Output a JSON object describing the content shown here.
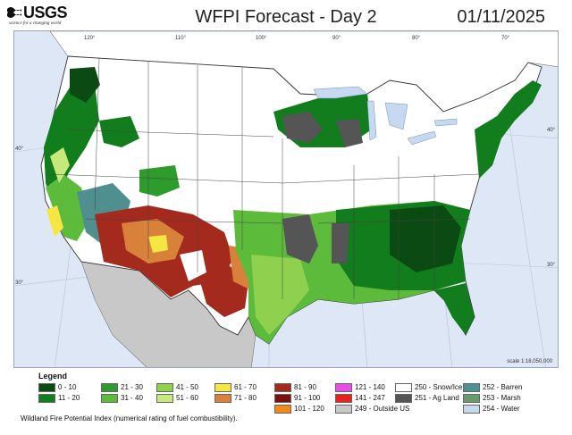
{
  "header": {
    "agency": "USGS",
    "tagline": "science for a changing world",
    "title": "WFPI Forecast - Day 2",
    "date": "01/11/2025"
  },
  "map": {
    "longitude_labels": [
      "120°",
      "110°",
      "100°",
      "90°",
      "80°",
      "70°"
    ],
    "latitude_labels_left": [
      "40°",
      "30°"
    ],
    "latitude_labels_right": [
      "40°",
      "30°"
    ],
    "scale": "scale 1:18,050,000",
    "colors": {
      "ocean": "#dde7f6",
      "outside_us": "#c8c8c8",
      "snow_ice": "#ffffff",
      "ag_land": "#555555",
      "barren": "#4f8f8f",
      "water": "#c6d9f1"
    }
  },
  "legend": {
    "title": "Legend",
    "items": [
      {
        "label": "0 - 10",
        "color": "#0b4a12"
      },
      {
        "label": "11 - 20",
        "color": "#127d1c"
      },
      {
        "label": "21 - 30",
        "color": "#2e9c2c"
      },
      {
        "label": "31 - 40",
        "color": "#5dbb3b"
      },
      {
        "label": "41 - 50",
        "color": "#8fd14f"
      },
      {
        "label": "51 - 60",
        "color": "#c7e87b"
      },
      {
        "label": "61 - 70",
        "color": "#f5e642"
      },
      {
        "label": "71 - 80",
        "color": "#d8813a"
      },
      {
        "label": "81 - 90",
        "color": "#a52a1e"
      },
      {
        "label": "91 - 100",
        "color": "#7a1010"
      },
      {
        "label": "101 - 120",
        "color": "#f08a1e"
      },
      {
        "label": "121 - 140",
        "color": "#e64ee6"
      },
      {
        "label": "141 - 247",
        "color": "#e8201e"
      },
      {
        "label": "249 - Outside US",
        "color": "#c8c8c8"
      },
      {
        "label": "250 - Snow/Ice",
        "color": "#ffffff"
      },
      {
        "label": "251 - Ag Land",
        "color": "#555555"
      },
      {
        "label": "252 - Barren",
        "color": "#4f8f8f"
      },
      {
        "label": "253 - Marsh",
        "color": "#6a9a6a"
      },
      {
        "label": "254 - Water",
        "color": "#c6d9f1"
      }
    ],
    "caption": "Wildland Fire Potential Index (numerical rating of fuel combustibility)."
  }
}
